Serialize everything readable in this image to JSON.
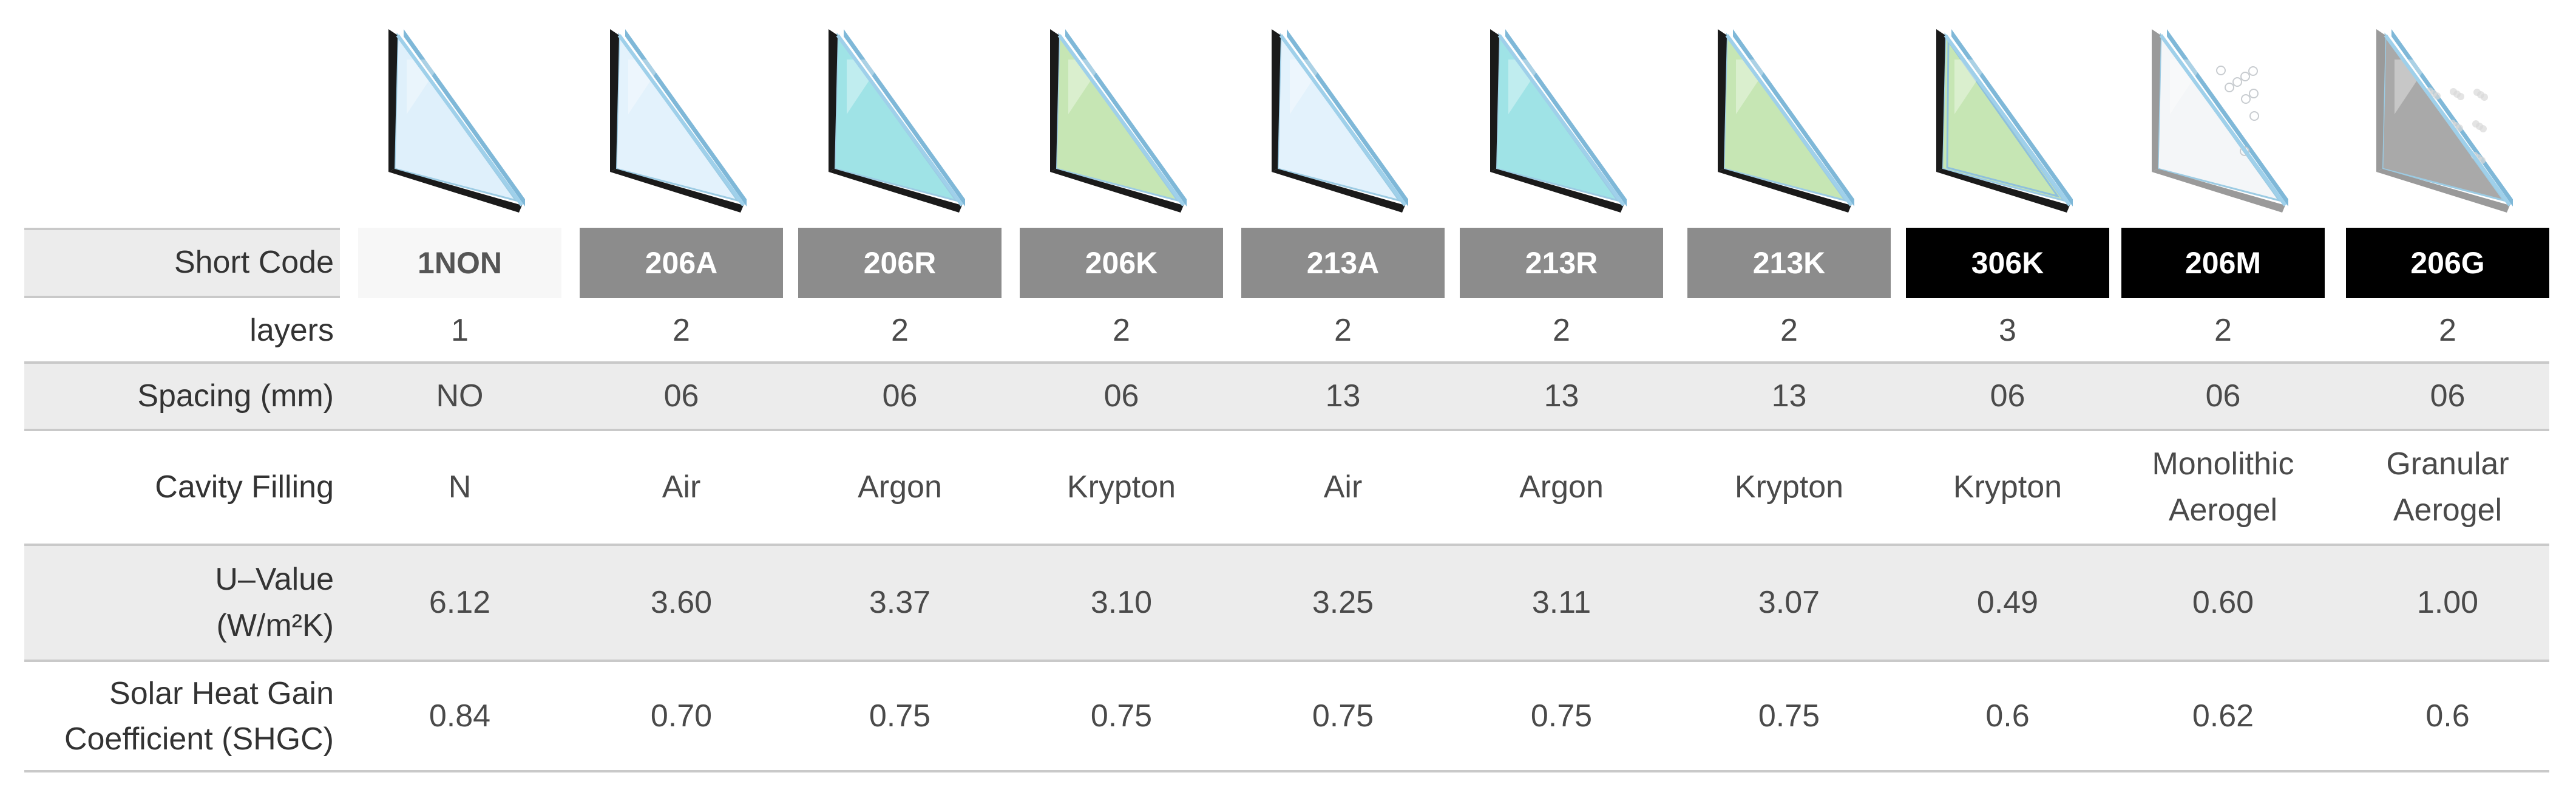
{
  "row_labels": {
    "short_code": "Short Code",
    "layers": "layers",
    "spacing": "Spacing (mm)",
    "cavity": "Cavity Filling",
    "u_value_line1": "U–Value",
    "u_value_line2": "(W/m²K)",
    "shgc_line1": "Solar Heat Gain",
    "shgc_line2": "Coefficient (SHGC)"
  },
  "columns": [
    {
      "code": "1NON",
      "code_style": "white",
      "layers": "1",
      "spacing": "NO",
      "cavity_line1": "N",
      "cavity_line2": "",
      "u_value": "6.12",
      "shgc": "0.84",
      "tint": "clear",
      "panes": 1
    },
    {
      "code": "206A",
      "code_style": "grey",
      "layers": "2",
      "spacing": "06",
      "cavity_line1": "Air",
      "cavity_line2": "",
      "u_value": "3.60",
      "shgc": "0.70",
      "tint": "air",
      "panes": 2
    },
    {
      "code": "206R",
      "code_style": "grey",
      "layers": "2",
      "spacing": "06",
      "cavity_line1": "Argon",
      "cavity_line2": "",
      "u_value": "3.37",
      "shgc": "0.75",
      "tint": "argon",
      "panes": 2
    },
    {
      "code": "206K",
      "code_style": "grey",
      "layers": "2",
      "spacing": "06",
      "cavity_line1": "Krypton",
      "cavity_line2": "",
      "u_value": "3.10",
      "shgc": "0.75",
      "tint": "krypton",
      "panes": 2
    },
    {
      "code": "213A",
      "code_style": "grey",
      "layers": "2",
      "spacing": "13",
      "cavity_line1": "Air",
      "cavity_line2": "",
      "u_value": "3.25",
      "shgc": "0.75",
      "tint": "air",
      "panes": 2
    },
    {
      "code": "213R",
      "code_style": "grey",
      "layers": "2",
      "spacing": "13",
      "cavity_line1": "Argon",
      "cavity_line2": "",
      "u_value": "3.11",
      "shgc": "0.75",
      "tint": "argon",
      "panes": 2
    },
    {
      "code": "213K",
      "code_style": "grey",
      "layers": "2",
      "spacing": "13",
      "cavity_line1": "Krypton",
      "cavity_line2": "",
      "u_value": "3.07",
      "shgc": "0.75",
      "tint": "krypton",
      "panes": 2
    },
    {
      "code": "306K",
      "code_style": "black",
      "layers": "3",
      "spacing": "06",
      "cavity_line1": "Krypton",
      "cavity_line2": "",
      "u_value": "0.49",
      "shgc": "0.6",
      "tint": "krypton",
      "panes": 3
    },
    {
      "code": "206M",
      "code_style": "black",
      "layers": "2",
      "spacing": "06",
      "cavity_line1": "Monolithic",
      "cavity_line2": "Aerogel",
      "u_value": "0.60",
      "shgc": "0.62",
      "tint": "monolithic",
      "panes": 2
    },
    {
      "code": "206G",
      "code_style": "black",
      "layers": "2",
      "spacing": "06",
      "cavity_line1": "Granular",
      "cavity_line2": "Aerogel",
      "u_value": "1.00",
      "shgc": "0.6",
      "tint": "granular",
      "panes": 2
    }
  ],
  "colors": {
    "clear": "#dff0fb",
    "air": "#e3f2fc",
    "argon": "#9fe3e6",
    "krypton": "#c6e6b4",
    "monolithic": "#f4f6f8",
    "granular": "#a9a9a9",
    "code_grey": "#8c8c8c",
    "code_black": "#000000",
    "band": "#ececec"
  }
}
